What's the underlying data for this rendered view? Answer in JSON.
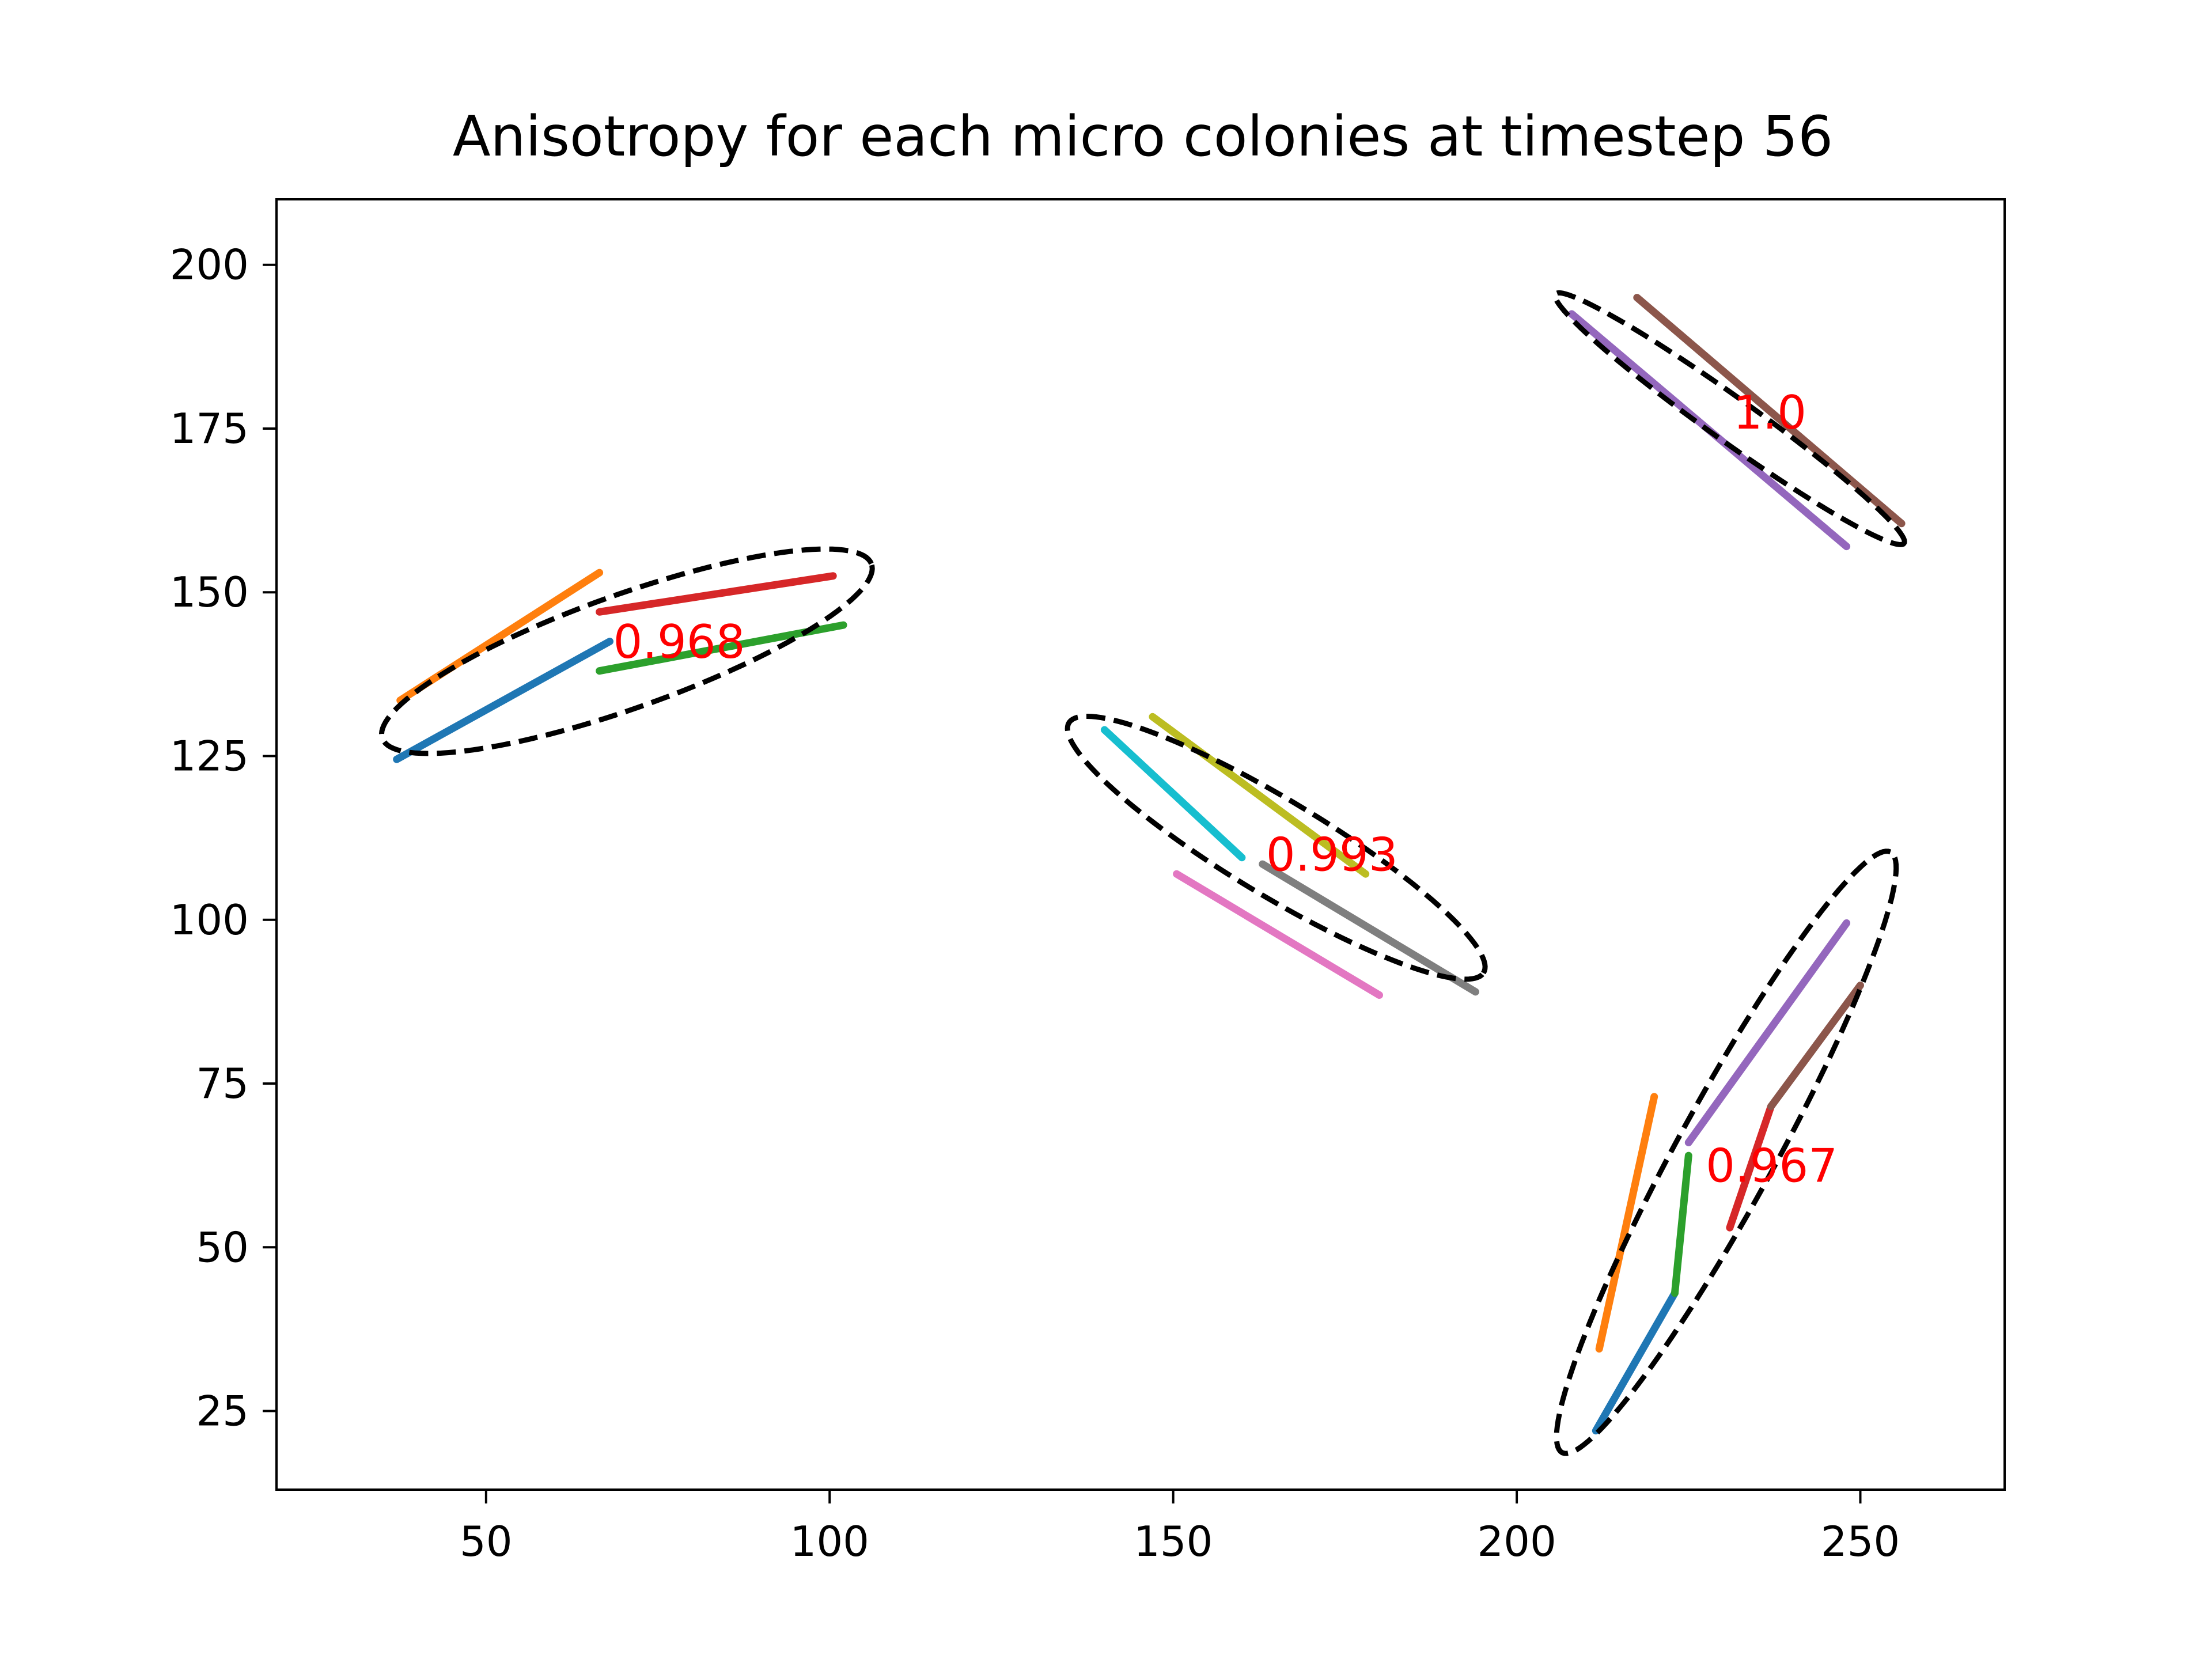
{
  "chart_data": {
    "type": "line",
    "title": "Anisotropy for each micro colonies at timestep 56",
    "xlabel": "",
    "ylabel": "",
    "xlim": [
      19.5,
      271
    ],
    "ylim": [
      13,
      210
    ],
    "xticks": [
      50,
      100,
      150,
      200,
      250
    ],
    "yticks": [
      25,
      50,
      75,
      100,
      125,
      150,
      175,
      200
    ],
    "grid": false,
    "colonies": [
      {
        "anisotropy_label": "0.968",
        "label_at": [
          68.5,
          140
        ],
        "ellipse": {
          "center": [
            70.5,
            141
          ],
          "semi_major": 38.0,
          "semi_minor": 8.6,
          "angle_deg": 20.6
        },
        "segments": [
          {
            "color": "#1f77b4",
            "points": [
              [
                37,
                124.5
              ],
              [
                68,
                142.5
              ]
            ]
          },
          {
            "color": "#ff7f0e",
            "points": [
              [
                37.5,
                133.5
              ],
              [
                66.5,
                153
              ]
            ]
          },
          {
            "color": "#2ca02c",
            "points": [
              [
                66.5,
                138
              ],
              [
                102,
                145
              ]
            ]
          },
          {
            "color": "#d62728",
            "points": [
              [
                66.5,
                147
              ],
              [
                100.5,
                152.5
              ]
            ]
          }
        ]
      },
      {
        "anisotropy_label": "0.993",
        "label_at": [
          163.5,
          107.5
        ],
        "ellipse": {
          "center": [
            165,
            111
          ],
          "semi_major": 35.7,
          "semi_minor": 7.2,
          "angle_deg": -32.4
        },
        "segments": [
          {
            "color": "#17becf",
            "points": [
              [
                140,
                129
              ],
              [
                160,
                109.5
              ]
            ]
          },
          {
            "color": "#bcbd22",
            "points": [
              [
                147,
                131
              ],
              [
                178,
                107
              ]
            ]
          },
          {
            "color": "#e377c2",
            "points": [
              [
                150.5,
                107
              ],
              [
                180,
                88.5
              ]
            ]
          },
          {
            "color": "#7f7f7f",
            "points": [
              [
                163,
                108.5
              ],
              [
                194,
                89
              ]
            ]
          }
        ]
      },
      {
        "anisotropy_label": "1.0",
        "label_at": [
          231.5,
          175
        ],
        "ellipse": {
          "center": [
            231,
            176.5
          ],
          "semi_major": 31.7,
          "semi_minor": 3.3,
          "angle_deg": -36.9
        },
        "segments": [
          {
            "color": "#9467bd",
            "points": [
              [
                208,
                192.5
              ],
              [
                248,
                157
              ]
            ]
          },
          {
            "color": "#8c564b",
            "points": [
              [
                217.5,
                195
              ],
              [
                256,
                160.5
              ]
            ]
          }
        ]
      },
      {
        "anisotropy_label": "0.967",
        "label_at": [
          227.5,
          60
        ],
        "ellipse": {
          "center": [
            230.5,
            64.5
          ],
          "semi_major": 51.7,
          "semi_minor": 7.2,
          "angle_deg": 62.5
        },
        "segments": [
          {
            "color": "#1f77b4",
            "points": [
              [
                211.5,
                22
              ],
              [
                223,
                43
              ]
            ]
          },
          {
            "color": "#ff7f0e",
            "points": [
              [
                212,
                34.5
              ],
              [
                220,
                73
              ]
            ]
          },
          {
            "color": "#2ca02c",
            "points": [
              [
                223,
                43
              ],
              [
                225,
                64
              ]
            ]
          },
          {
            "color": "#d62728",
            "points": [
              [
                231,
                53
              ],
              [
                237,
                71.5
              ]
            ]
          },
          {
            "color": "#8c564b",
            "points": [
              [
                237,
                71.5
              ],
              [
                250,
                90
              ]
            ]
          },
          {
            "color": "#9467bd",
            "points": [
              [
                225,
                66
              ],
              [
                248,
                99.5
              ]
            ]
          }
        ]
      }
    ],
    "colors": {
      "label": "#ff0000",
      "ellipse": "#000000",
      "axes": "#000000"
    }
  }
}
